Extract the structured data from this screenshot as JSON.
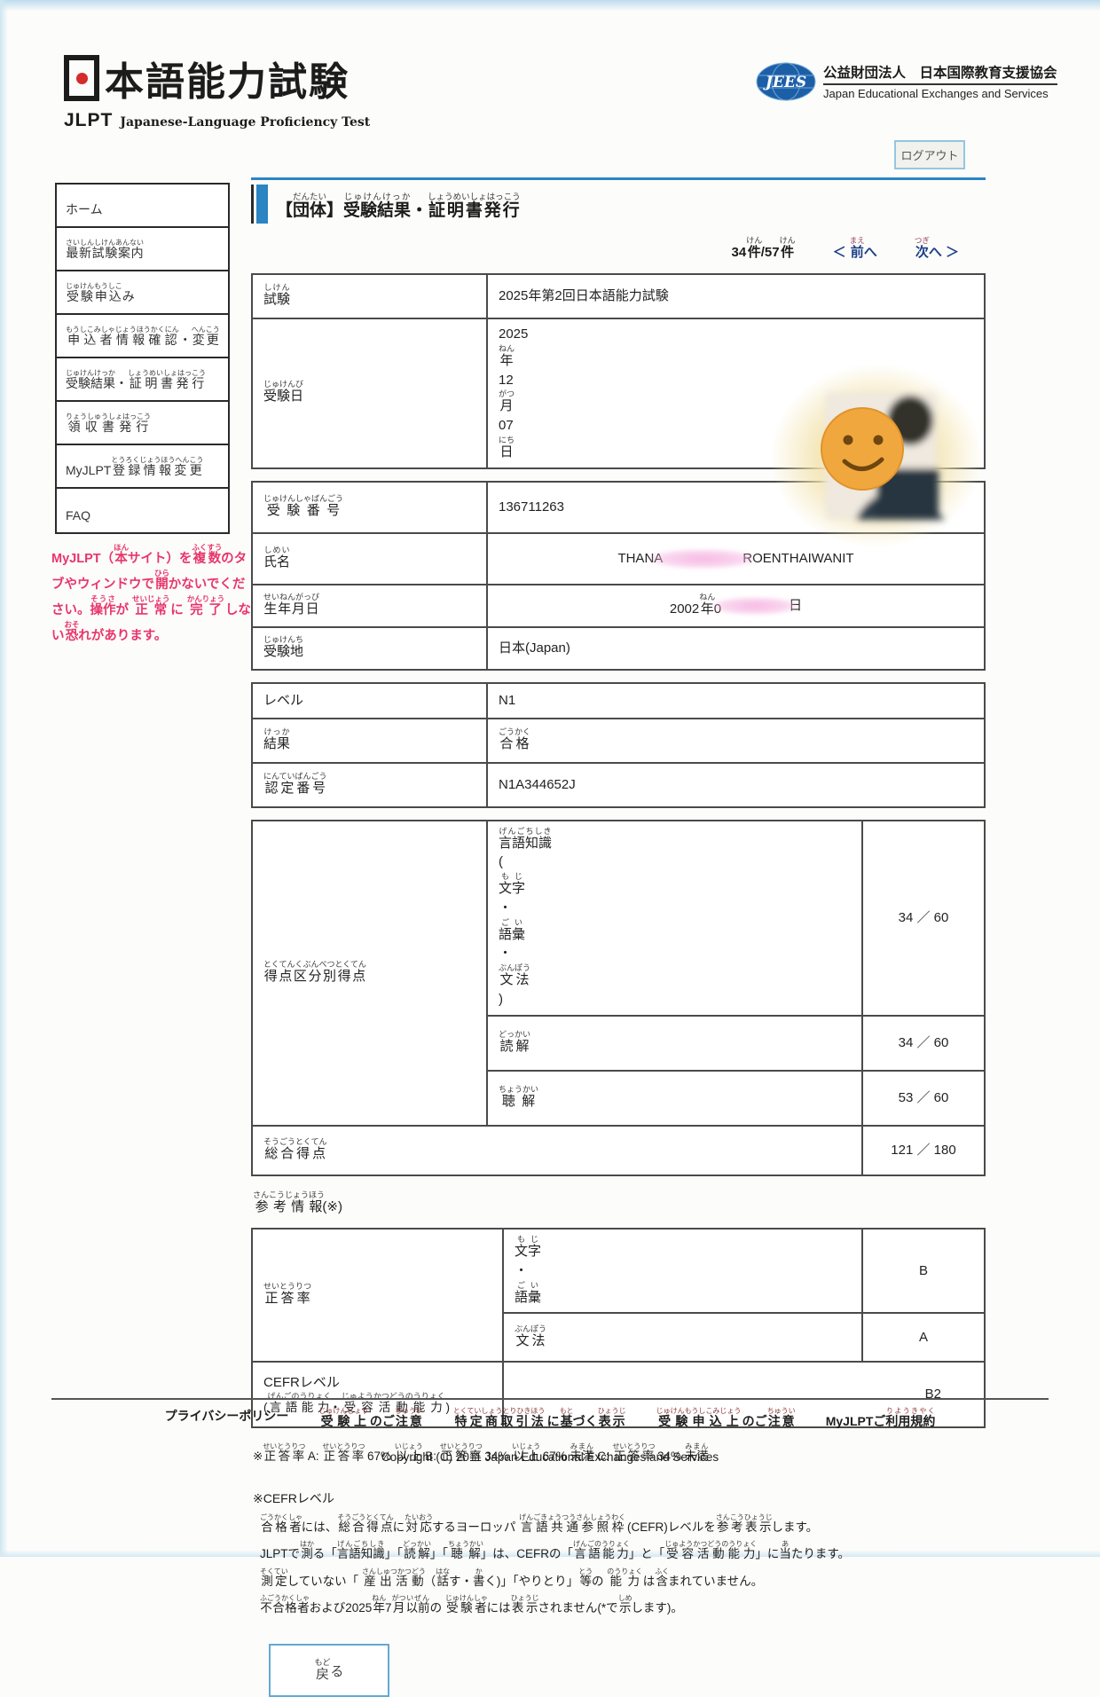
{
  "colors": {
    "accent_blue": "#2a85c2",
    "link_navy": "#1b3f86",
    "warning_pink": "#e8356b",
    "furigana_maroon": "#9c4052",
    "table_border": "#4a4a4a",
    "logo_red": "#d42b2b",
    "jees_blue": "#1d5fa7"
  },
  "header": {
    "jlpt_logo": {
      "kanji_first": "日",
      "kanji_rest": "本語能力試験",
      "acronym": "JLPT",
      "tagline": "Japanese-Language Proficiency Test"
    },
    "jees_logo": {
      "acronym": "JEES",
      "org_jp": "公益財団法人　日本国際教育支援協会",
      "org_en": "Japan Educational Exchanges and Services"
    },
    "logout_label": "ログアウト"
  },
  "sidebar": {
    "items": [
      {
        "id": "home",
        "ruby": [
          {
            "t": "ホーム",
            "r": ""
          }
        ]
      },
      {
        "id": "latest-exam-info",
        "ruby": [
          {
            "t": "最新試験案内",
            "r": "さいしんしけんあんない"
          }
        ]
      },
      {
        "id": "exam-application",
        "ruby": [
          {
            "t": "受験申込",
            "r": "じゅけんもうしこ"
          },
          {
            "t": "み",
            "r": ""
          }
        ]
      },
      {
        "id": "applicant-info-change",
        "ruby": [
          {
            "t": "申込者情報確認",
            "r": "もうしこみしゃじょうほうかくにん"
          },
          {
            "t": " ・",
            "r": ""
          },
          {
            "t": "変更",
            "r": "へんこう"
          }
        ]
      },
      {
        "id": "results-certificates",
        "ruby": [
          {
            "t": "受験結果",
            "r": "じゅけんけっか"
          },
          {
            "t": "・",
            "r": ""
          },
          {
            "t": "証明書発行",
            "r": "しょうめいしょはっこう"
          }
        ]
      },
      {
        "id": "receipt-issuance",
        "ruby": [
          {
            "t": "領収書発行",
            "r": "りょうしゅうしょはっこう"
          }
        ]
      },
      {
        "id": "myjlpt-registration-change",
        "ruby": [
          {
            "t": "MyJLPT ",
            "r": ""
          },
          {
            "t": "登録情報変更",
            "r": "とうろくじょうほうへんこう"
          }
        ]
      },
      {
        "id": "faq",
        "ruby": [
          {
            "t": "FAQ",
            "r": ""
          }
        ]
      }
    ],
    "warning_ruby": [
      {
        "t": "MyJLPT（",
        "r": ""
      },
      {
        "t": "本",
        "r": "ほん"
      },
      {
        "t": "サイト）を",
        "r": ""
      },
      {
        "t": "複数",
        "r": "ふくすう"
      },
      {
        "t": "のタブやウィンドウで",
        "r": ""
      },
      {
        "t": "開",
        "r": "ひら"
      },
      {
        "t": "かないでください。",
        "r": ""
      },
      {
        "t": "操作",
        "r": "そうさ"
      },
      {
        "t": "が ",
        "r": ""
      },
      {
        "t": "正常",
        "r": "せいじょう"
      },
      {
        "t": " に ",
        "r": ""
      },
      {
        "t": "完了",
        "r": "かんりょう"
      },
      {
        "t": " しない",
        "r": ""
      },
      {
        "t": "恐",
        "r": "おそ"
      },
      {
        "t": "れがあります。",
        "r": ""
      }
    ]
  },
  "main": {
    "title_ruby": [
      {
        "t": "【",
        "r": ""
      },
      {
        "t": "団体",
        "r": "だんたい"
      },
      {
        "t": "】",
        "r": ""
      },
      {
        "t": "受験結果",
        "r": "じゅけんけっか"
      },
      {
        "t": "・",
        "r": ""
      },
      {
        "t": "証明書発行",
        "r": "しょうめいしょはっこう"
      }
    ],
    "pagination": {
      "count_ruby": [
        {
          "t": "34",
          "r": ""
        },
        {
          "t": "件",
          "r": "けん"
        },
        {
          "t": "/57",
          "r": ""
        },
        {
          "t": "件",
          "r": "けん"
        }
      ],
      "prev_ruby": [
        {
          "t": "＜ ",
          "r": ""
        },
        {
          "t": "前",
          "r": "まえ"
        },
        {
          "t": "へ",
          "r": ""
        }
      ],
      "next_ruby": [
        {
          "t": "次",
          "r": "つぎ"
        },
        {
          "t": "へ ＞",
          "r": ""
        }
      ]
    },
    "exam_table": {
      "exam_label_ruby": [
        {
          "t": "試験",
          "r": "しけん"
        }
      ],
      "exam_value": "2025年第2回日本語能力試験",
      "date_label_ruby": [
        {
          "t": "受験日",
          "r": "じゅけんび"
        }
      ],
      "date_value_ruby": [
        {
          "t": "2025",
          "r": ""
        },
        {
          "t": "年",
          "r": "ねん"
        },
        {
          "t": "12",
          "r": ""
        },
        {
          "t": "月",
          "r": "がつ"
        },
        {
          "t": "07",
          "r": ""
        },
        {
          "t": "日",
          "r": "にち"
        }
      ]
    },
    "personal_table": {
      "number_label_ruby": [
        {
          "t": "受験番号",
          "r": "じゅけんしゃばんごう"
        }
      ],
      "number_value": "136711263",
      "name_label_ruby": [
        {
          "t": "氏名",
          "r": "しめい"
        }
      ],
      "name_part1": "THANA",
      "name_part2": "ROENTHAIWANIT",
      "birth_label_ruby": [
        {
          "t": "生年月日",
          "r": "せいねんがっぴ"
        }
      ],
      "birth_prefix_ruby": [
        {
          "t": "2002",
          "r": ""
        },
        {
          "t": "年",
          "r": "ねん"
        },
        {
          "t": "0",
          "r": ""
        }
      ],
      "birth_suffix": "日",
      "place_label_ruby": [
        {
          "t": "受験地",
          "r": "じゅけんち"
        }
      ],
      "place_value": "日本(Japan)"
    },
    "result_table": {
      "level_label": "レベル",
      "level_value": "N1",
      "result_label_ruby": [
        {
          "t": "結果",
          "r": "けっか"
        }
      ],
      "result_value_ruby": [
        {
          "t": "合格",
          "r": "ごうかく"
        }
      ],
      "cert_label_ruby": [
        {
          "t": "認定番号",
          "r": "にんていばんごう"
        }
      ],
      "cert_value": "N1A344652J"
    },
    "score_table": {
      "section_label_ruby": [
        {
          "t": "得点区分別得点",
          "r": "とくてんくぶんべつとくてん"
        }
      ],
      "rows": [
        {
          "subject_ruby": [
            {
              "t": "言語知識",
              "r": "げんごちしき"
            },
            {
              "t": "(",
              "r": ""
            },
            {
              "t": "文字",
              "r": "もじ"
            },
            {
              "t": "・",
              "r": ""
            },
            {
              "t": "語彙",
              "r": "ごい"
            },
            {
              "t": "・",
              "r": ""
            },
            {
              "t": "文法",
              "r": "ぶんぽう"
            },
            {
              "t": ")",
              "r": ""
            }
          ],
          "score": "34 ／ 60"
        },
        {
          "subject_ruby": [
            {
              "t": "読解",
              "r": "どっかい"
            }
          ],
          "score": "34 ／ 60"
        },
        {
          "subject_ruby": [
            {
              "t": "聴解",
              "r": "ちょうかい"
            }
          ],
          "score": "53 ／ 60"
        }
      ],
      "total_label_ruby": [
        {
          "t": "総合得点",
          "r": "そうごうとくてん"
        }
      ],
      "total_score": "121 ／ 180"
    },
    "reference_heading_ruby": [
      {
        "t": "参考情報",
        "r": "さんこうじょうほう"
      },
      {
        "t": "(※)",
        "r": ""
      }
    ],
    "reference_table": {
      "rate_label_ruby": [
        {
          "t": "正答率",
          "r": "せいとうりつ"
        }
      ],
      "rows": [
        {
          "subject_ruby": [
            {
              "t": "文字",
              "r": "もじ"
            },
            {
              "t": "・",
              "r": ""
            },
            {
              "t": "語彙",
              "r": "ごい"
            }
          ],
          "grade": "B"
        },
        {
          "subject_ruby": [
            {
              "t": "文法",
              "r": "ぶんぽう"
            }
          ],
          "grade": "A"
        }
      ],
      "cefr_label_line1": "CEFRレベル",
      "cefr_label_line2_ruby": [
        {
          "t": "(",
          "r": ""
        },
        {
          "t": "言語能力",
          "r": "げんごのうりょく"
        },
        {
          "t": "・",
          "r": ""
        },
        {
          "t": "受容活動能力",
          "r": "じゅようかつどうのうりょく"
        },
        {
          "t": " )",
          "r": ""
        }
      ],
      "cefr_value": "B2"
    },
    "note_rate_ruby": [
      {
        "t": "※",
        "r": ""
      },
      {
        "t": "正答率",
        "r": "せいとうりつ"
      },
      {
        "t": " A: ",
        "r": ""
      },
      {
        "t": "正答率",
        "r": "せいとうりつ"
      },
      {
        "t": " 67% ",
        "r": ""
      },
      {
        "t": "以上",
        "r": "いじょう"
      },
      {
        "t": "  B: ",
        "r": ""
      },
      {
        "t": "正答率",
        "r": "せいとうりつ"
      },
      {
        "t": " 34% ",
        "r": ""
      },
      {
        "t": "以上",
        "r": "いじょう"
      },
      {
        "t": " 67% ",
        "r": ""
      },
      {
        "t": "未満",
        "r": "みまん"
      },
      {
        "t": "  C: ",
        "r": ""
      },
      {
        "t": "正答率",
        "r": "せいとうりつ"
      },
      {
        "t": " 34% ",
        "r": ""
      },
      {
        "t": "未満",
        "r": "みまん"
      }
    ],
    "note_cefr_heading": "※CEFRレベル",
    "note_cefr_lines": [
      {
        "ruby": [
          {
            "t": "合格者",
            "r": "ごうかくしゃ"
          },
          {
            "t": "には、",
            "r": ""
          },
          {
            "t": "総合得点",
            "r": "そうごうとくてん"
          },
          {
            "t": "に",
            "r": ""
          },
          {
            "t": "対応",
            "r": "たいおう"
          },
          {
            "t": "するヨーロッパ ",
            "r": ""
          },
          {
            "t": "言語共通参照枠",
            "r": "げんごきょうつうさんしょうわく"
          },
          {
            "t": " (CEFR)レベルを",
            "r": ""
          },
          {
            "t": "参考表示",
            "r": "さんこうひょうじ"
          },
          {
            "t": "します。",
            "r": ""
          }
        ]
      },
      {
        "ruby": [
          {
            "t": "JLPTで",
            "r": ""
          },
          {
            "t": "測",
            "r": "はか"
          },
          {
            "t": "る「",
            "r": ""
          },
          {
            "t": "言語知識",
            "r": "げんごちしき"
          },
          {
            "t": "」「",
            "r": ""
          },
          {
            "t": "読解",
            "r": "どっかい"
          },
          {
            "t": "」「",
            "r": ""
          },
          {
            "t": "聴解",
            "r": "ちょうかい"
          },
          {
            "t": "」は、CEFRの「",
            "r": ""
          },
          {
            "t": "言語能力",
            "r": "げんごのうりょく"
          },
          {
            "t": "」と「",
            "r": ""
          },
          {
            "t": "受容活動能力",
            "r": "じゅようかつどうのうりょく"
          },
          {
            "t": "」に",
            "r": ""
          },
          {
            "t": "当",
            "r": "あ"
          },
          {
            "t": "たります。",
            "r": ""
          }
        ]
      },
      {
        "ruby": [
          {
            "t": "測定",
            "r": "そくてい"
          },
          {
            "t": "していない「 ",
            "r": ""
          },
          {
            "t": "産出活動",
            "r": "さんしゅつかつどう"
          },
          {
            "t": "（",
            "r": ""
          },
          {
            "t": "話",
            "r": "はな"
          },
          {
            "t": "す・",
            "r": ""
          },
          {
            "t": "書",
            "r": "か"
          },
          {
            "t": "く)」「やりとり」",
            "r": ""
          },
          {
            "t": "等",
            "r": "とう"
          },
          {
            "t": "の ",
            "r": ""
          },
          {
            "t": "能力",
            "r": "のうりょく"
          },
          {
            "t": " は",
            "r": ""
          },
          {
            "t": "含",
            "r": "ふく"
          },
          {
            "t": "まれていません。",
            "r": ""
          }
        ]
      },
      {
        "ruby": [
          {
            "t": "不合格者",
            "r": "ふごうかくしゃ"
          },
          {
            "t": "および2025",
            "r": ""
          },
          {
            "t": "年",
            "r": "ねん"
          },
          {
            "t": "7",
            "r": ""
          },
          {
            "t": "月",
            "r": "がつ"
          },
          {
            "t": "以前",
            "r": "いぜん"
          },
          {
            "t": "の ",
            "r": ""
          },
          {
            "t": "受験者",
            "r": "じゅけんしゃ"
          },
          {
            "t": "には",
            "r": ""
          },
          {
            "t": "表示",
            "r": "ひょうじ"
          },
          {
            "t": "されません(*で",
            "r": ""
          },
          {
            "t": "示",
            "r": "しめ"
          },
          {
            "t": "します)。",
            "r": ""
          }
        ]
      }
    ],
    "back_button_ruby": [
      {
        "t": "戻",
        "r": "もど"
      },
      {
        "t": "る",
        "r": ""
      }
    ]
  },
  "footer": {
    "links": [
      {
        "id": "privacy-policy",
        "ruby": [
          {
            "t": "プライバシーポリシー",
            "r": ""
          }
        ]
      },
      {
        "id": "exam-notes",
        "ruby": [
          {
            "t": "受験上",
            "r": "じゅけんじょう"
          },
          {
            "t": " のご",
            "r": ""
          },
          {
            "t": "注意",
            "r": "ちゅうい"
          }
        ]
      },
      {
        "id": "commercial-transactions-act",
        "ruby": [
          {
            "t": "特定商取引法",
            "r": "とくていしょうとりひきほう"
          },
          {
            "t": " に",
            "r": ""
          },
          {
            "t": "基",
            "r": "もと"
          },
          {
            "t": "づく",
            "r": ""
          },
          {
            "t": "表示",
            "r": "ひょうじ"
          }
        ]
      },
      {
        "id": "application-notes",
        "ruby": [
          {
            "t": "受験申込上",
            "r": "じゅけんもうしこみじょう"
          },
          {
            "t": " のご",
            "r": ""
          },
          {
            "t": "注意",
            "r": "ちゅうい"
          }
        ]
      },
      {
        "id": "terms-of-use",
        "ruby": [
          {
            "t": "MyJLPTご",
            "r": ""
          },
          {
            "t": "利用規約",
            "r": "りようきやく"
          }
        ]
      }
    ],
    "copyright": "Copyright (C) 2011 Japan Educational Exchanges and Services"
  }
}
